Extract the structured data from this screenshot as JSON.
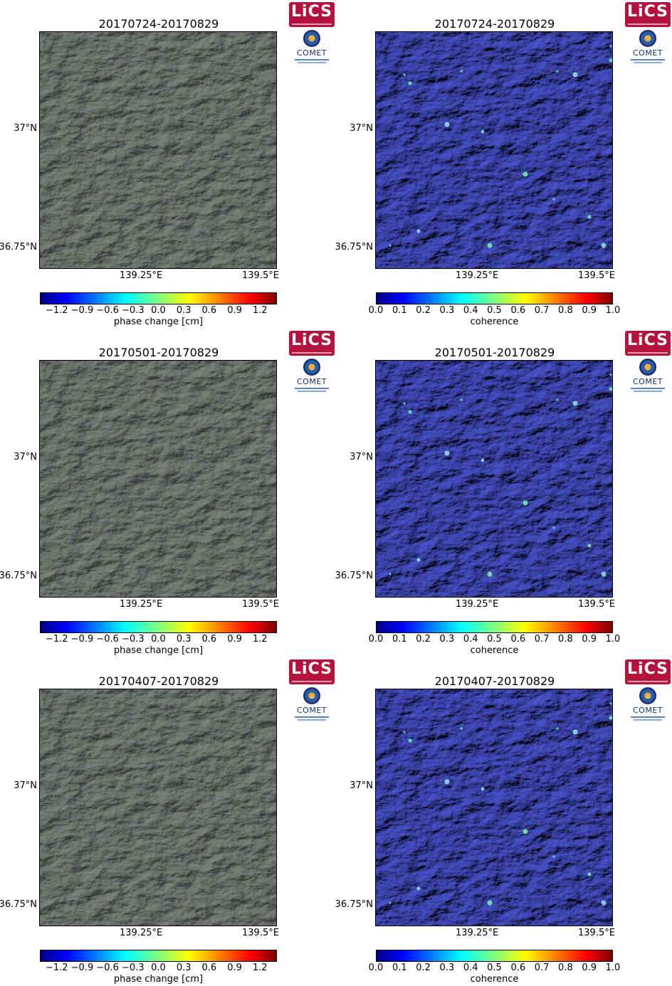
{
  "axes": {
    "yticks": [
      "37°N",
      "36.75°N"
    ],
    "xticks": [
      "139.25°E",
      "139.5°E"
    ]
  },
  "logos": {
    "lics": "LiCS",
    "comet": "COMET"
  },
  "colorbars": {
    "phase": {
      "label": "phase change [cm]",
      "ticks": [
        "−1.2",
        "−0.9",
        "−0.6",
        "−0.3",
        "0.0",
        "0.3",
        "0.6",
        "0.9",
        "1.2"
      ],
      "colormap": "jet"
    },
    "coherence": {
      "label": "coherence",
      "ticks": [
        "0.0",
        "0.1",
        "0.2",
        "0.3",
        "0.4",
        "0.5",
        "0.6",
        "0.7",
        "0.8",
        "0.9",
        "1.0"
      ],
      "colormap": "jet"
    }
  },
  "panels": [
    {
      "title": "20170724-20170829",
      "type": "phase"
    },
    {
      "title": "20170724-20170829",
      "type": "coherence"
    },
    {
      "title": "20170501-20170829",
      "type": "phase"
    },
    {
      "title": "20170501-20170829",
      "type": "coherence"
    },
    {
      "title": "20170407-20170829",
      "type": "phase"
    },
    {
      "title": "20170407-20170829",
      "type": "coherence"
    }
  ],
  "colors": {
    "phase_bg": "#8e948e",
    "coherence_bg": "#4b55cf",
    "lics_red": "#b3133d",
    "comet_blue": "#1a2f6a"
  }
}
